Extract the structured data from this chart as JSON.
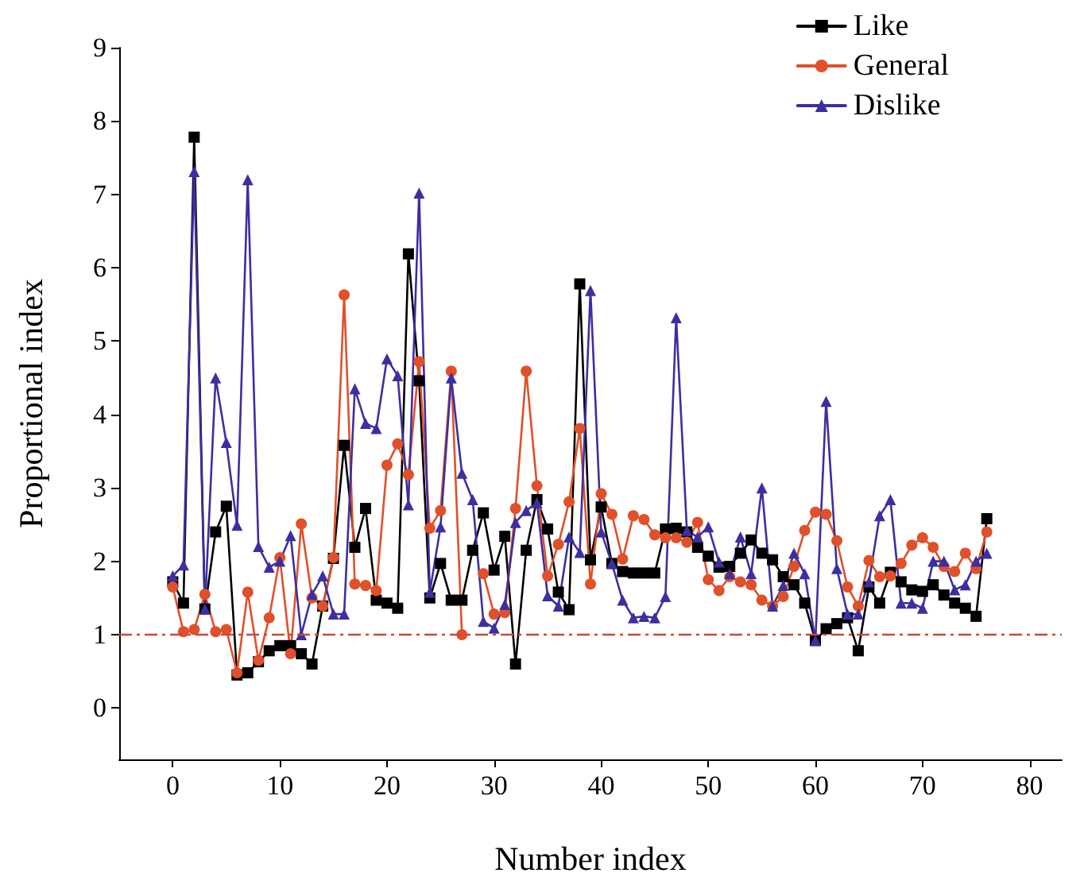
{
  "chart_data": {
    "type": "line",
    "xlabel": "Number index",
    "ylabel": "Proportional index",
    "x": [
      0,
      1,
      2,
      3,
      4,
      5,
      6,
      7,
      8,
      9,
      10,
      11,
      12,
      13,
      14,
      15,
      16,
      17,
      18,
      19,
      20,
      21,
      22,
      23,
      24,
      25,
      26,
      27,
      28,
      29,
      30,
      31,
      32,
      33,
      34,
      35,
      36,
      37,
      38,
      39,
      40,
      41,
      42,
      43,
      44,
      45,
      46,
      47,
      48,
      49,
      50,
      51,
      52,
      53,
      54,
      55,
      56,
      57,
      58,
      59,
      60,
      61,
      62,
      63,
      64,
      65,
      66,
      67,
      68,
      69,
      70,
      71,
      72,
      73,
      74,
      75,
      76
    ],
    "series": [
      {
        "name": "Like",
        "color": "#000000",
        "marker": "square",
        "values": [
          1.72,
          1.43,
          7.78,
          1.35,
          2.4,
          2.75,
          0.45,
          0.48,
          0.63,
          0.78,
          0.85,
          0.85,
          0.74,
          0.6,
          1.39,
          2.04,
          3.58,
          2.19,
          2.72,
          1.47,
          1.43,
          1.36,
          6.19,
          4.46,
          1.5,
          1.97,
          1.47,
          1.47,
          2.15,
          2.66,
          1.88,
          2.34,
          0.6,
          2.15,
          2.84,
          2.44,
          1.58,
          1.34,
          5.78,
          2.02,
          2.74,
          1.97,
          1.86,
          1.84,
          1.84,
          1.84,
          2.44,
          2.45,
          2.4,
          2.19,
          2.07,
          1.92,
          1.93,
          2.11,
          2.29,
          2.11,
          2.02,
          1.79,
          1.68,
          1.43,
          0.92,
          1.08,
          1.15,
          1.23,
          0.78,
          1.65,
          1.43,
          1.85,
          1.72,
          1.61,
          1.59,
          1.68,
          1.54,
          1.43,
          1.36,
          1.25,
          2.58
        ]
      },
      {
        "name": "General",
        "color": "#e0502a",
        "marker": "circle",
        "values": [
          1.65,
          1.04,
          1.07,
          1.55,
          1.04,
          1.07,
          0.48,
          1.58,
          0.65,
          1.23,
          2.05,
          0.74,
          2.51,
          1.5,
          1.39,
          2.05,
          5.63,
          1.69,
          1.67,
          1.6,
          3.31,
          3.6,
          3.18,
          4.72,
          2.45,
          2.69,
          4.59,
          1.0,
          null,
          1.83,
          1.28,
          1.3,
          2.72,
          4.59,
          3.03,
          1.8,
          2.23,
          2.81,
          3.81,
          1.69,
          2.92,
          2.64,
          2.03,
          2.62,
          2.57,
          2.36,
          2.32,
          2.32,
          2.26,
          2.53,
          1.75,
          1.6,
          1.79,
          1.72,
          1.68,
          1.47,
          1.39,
          1.52,
          1.93,
          2.42,
          2.67,
          2.64,
          2.28,
          1.65,
          1.39,
          2.01,
          1.79,
          1.8,
          1.97,
          2.22,
          2.32,
          2.19,
          1.93,
          1.86,
          2.11,
          1.9,
          2.4
        ]
      },
      {
        "name": "Dislike",
        "color": "#3c2fa0",
        "marker": "triangle",
        "values": [
          1.8,
          1.95,
          7.31,
          1.35,
          4.5,
          3.62,
          2.49,
          7.2,
          2.2,
          1.92,
          2.0,
          2.35,
          1.0,
          1.55,
          1.8,
          1.28,
          1.28,
          4.35,
          3.88,
          3.81,
          4.76,
          4.53,
          2.77,
          7.02,
          1.58,
          2.47,
          4.5,
          3.2,
          2.84,
          1.18,
          1.09,
          1.41,
          2.53,
          2.69,
          2.8,
          1.53,
          1.39,
          2.33,
          2.12,
          5.69,
          2.4,
          1.97,
          1.47,
          1.23,
          1.25,
          1.23,
          1.52,
          5.32,
          2.42,
          2.33,
          2.47,
          1.99,
          1.83,
          2.33,
          1.83,
          3.0,
          1.39,
          1.67,
          2.11,
          1.83,
          0.92,
          4.18,
          1.9,
          1.28,
          1.28,
          1.72,
          2.62,
          2.84,
          1.43,
          1.43,
          1.36,
          2.0,
          2.0,
          1.61,
          1.68,
          2.0,
          2.11
        ]
      }
    ],
    "xlim": [
      -5,
      83
    ],
    "xticks": [
      0,
      10,
      20,
      30,
      40,
      50,
      60,
      70,
      80
    ],
    "ylim": [
      -0.7,
      9
    ],
    "yticks": [
      0,
      1,
      2,
      3,
      4,
      5,
      6,
      7,
      8,
      9
    ],
    "ref_lines": [
      {
        "axis": "y",
        "value": 1,
        "color": "#d0453a",
        "line_style": "dashdot"
      }
    ],
    "grid": false,
    "legend": "top right",
    "line_style": "solid"
  }
}
